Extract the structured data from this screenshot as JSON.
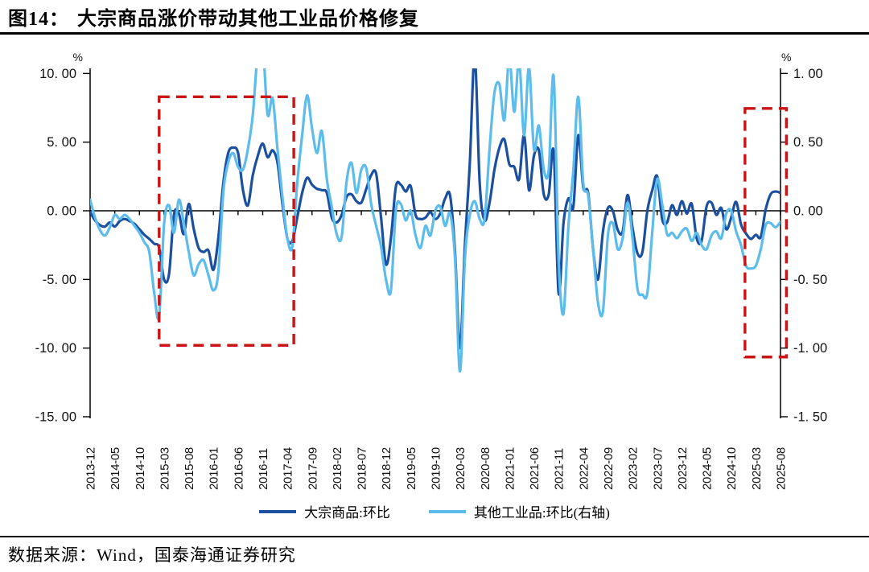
{
  "header": {
    "figure_no": "图14：",
    "title": "大宗商品涨价带动其他工业品价格修复"
  },
  "footer": {
    "source": "数据来源：Wind，国泰海通证券研究"
  },
  "chart_data": {
    "type": "line",
    "frequency": "monthly",
    "x_start": "2013-12",
    "x_end": "2025-08",
    "x_tick_labels": [
      "2013-12",
      "2014-05",
      "2014-10",
      "2015-03",
      "2015-08",
      "2016-01",
      "2016-06",
      "2016-11",
      "2017-04",
      "2017-09",
      "2018-02",
      "2018-07",
      "2018-12",
      "2019-05",
      "2019-10",
      "2020-03",
      "2020-08",
      "2021-01",
      "2021-06",
      "2021-11",
      "2022-04",
      "2022-09",
      "2023-02",
      "2023-07",
      "2023-12",
      "2024-05",
      "2024-10",
      "2025-03",
      "2025-08"
    ],
    "left_axis": {
      "unit": "%",
      "min": -15,
      "max": 10,
      "tick_values": [
        10,
        5,
        0,
        -5,
        -10,
        -15
      ],
      "tick_labels": [
        "10. 00",
        "5. 00",
        "0. 00",
        "-5. 00",
        "-10. 00",
        "-15. 00"
      ]
    },
    "right_axis": {
      "unit": "%",
      "min": -1.5,
      "max": 1,
      "tick_values": [
        1,
        0.5,
        0,
        -0.5,
        -1,
        -1.5
      ],
      "tick_labels": [
        "1. 00",
        "0. 50",
        "0. 00",
        "-0. 50",
        "-1. 00",
        "-1. 50"
      ]
    },
    "grid": false,
    "legend_position": "bottom-center",
    "highlight_color": "#c81414",
    "highlight_boxes": [
      {
        "from_month": "2015-02",
        "to_month": "2017-05",
        "from_index": 14.0,
        "to_index": 41.3,
        "top_value_left_axis": 8.3,
        "bottom_value_left_axis": -9.8
      },
      {
        "from_month": "2025-01",
        "to_month": "2025-08",
        "from_index": 132.8,
        "to_index": 141.2,
        "top_value_left_axis": 7.45,
        "bottom_value_left_axis": -10.65
      }
    ],
    "series": [
      {
        "name": "大宗商品:环比",
        "axis": "left",
        "color": "#1b4f9f",
        "values": [
          -0.1,
          -0.7,
          -1.05,
          -1.15,
          -0.85,
          -1.15,
          -0.75,
          -0.6,
          -0.75,
          -0.95,
          -1.35,
          -1.75,
          -2.05,
          -2.4,
          -2.7,
          -5.0,
          -4.6,
          -0.3,
          -0.2,
          -1.7,
          0.5,
          -1.3,
          -2.7,
          -3.0,
          -2.9,
          -4.3,
          -2.0,
          2.0,
          4.2,
          4.6,
          4.2,
          1.5,
          0.4,
          2.6,
          4.0,
          4.9,
          3.9,
          4.4,
          3.5,
          0.5,
          -2.0,
          -2.2,
          -0.5,
          1.3,
          2.4,
          1.9,
          1.6,
          1.5,
          1.3,
          -0.5,
          -0.85,
          -0.3,
          1.0,
          1.2,
          0.7,
          0.6,
          1.6,
          2.6,
          2.7,
          -0.5,
          -3.9,
          -2.0,
          1.75,
          1.9,
          1.4,
          1.8,
          -0.3,
          -0.6,
          -0.5,
          -0.1,
          -0.6,
          -0.2,
          0.9,
          1.1,
          -3.0,
          -10.0,
          -2.5,
          3.5,
          11.3,
          2.0,
          -0.7,
          0.6,
          3.0,
          4.6,
          5.2,
          3.4,
          3.2,
          2.3,
          5.5,
          1.5,
          4.0,
          4.4,
          1.2,
          1.2,
          4.3,
          -6.0,
          -0.9,
          0.9,
          0.3,
          5.5,
          1.7,
          1.3,
          -2.8,
          -5.0,
          -1.5,
          0.2,
          0.0,
          -1.4,
          -1.5,
          1.15,
          -1.25,
          -3.1,
          -3.0,
          0.0,
          1.5,
          2.5,
          -0.6,
          -0.85,
          0.4,
          -0.3,
          0.7,
          -0.2,
          0.5,
          -2.0,
          -2.2,
          0.3,
          0.6,
          -0.3,
          0.2,
          -1.35,
          -0.5,
          0.65,
          -1.0,
          -1.65,
          -2.05,
          -1.75,
          -1.9,
          0.1,
          1.2,
          1.4,
          1.3
        ]
      },
      {
        "name": "其他工业品:环比(右轴)",
        "axis": "right",
        "color": "#5cbcec",
        "values": [
          0.08,
          -0.05,
          -0.14,
          -0.18,
          -0.12,
          -0.03,
          -0.06,
          -0.03,
          -0.06,
          -0.11,
          -0.16,
          -0.23,
          -0.3,
          -0.6,
          -0.77,
          -0.1,
          0.04,
          -0.16,
          0.08,
          -0.09,
          -0.3,
          -0.47,
          -0.39,
          -0.36,
          -0.47,
          -0.58,
          -0.45,
          0.13,
          0.35,
          0.42,
          0.32,
          0.3,
          0.45,
          0.7,
          1.15,
          1.2,
          0.7,
          0.82,
          0.45,
          0.1,
          -0.2,
          -0.26,
          0.2,
          0.55,
          0.84,
          0.6,
          0.42,
          0.58,
          0.23,
          0.03,
          -0.17,
          -0.19,
          0.21,
          0.35,
          0.13,
          0.3,
          0.31,
          0.05,
          -0.11,
          -0.26,
          -0.5,
          -0.58,
          0.0,
          0.05,
          -0.07,
          0.0,
          -0.18,
          -0.27,
          -0.11,
          -0.18,
          0.0,
          0.03,
          -0.11,
          -0.02,
          -0.35,
          -1.17,
          -0.35,
          -0.03,
          0.07,
          -0.06,
          -0.06,
          0.45,
          0.86,
          0.92,
          0.66,
          1.12,
          0.72,
          1.1,
          0.55,
          1.05,
          0.45,
          0.62,
          0.3,
          0.3,
          0.98,
          -0.35,
          -0.75,
          -0.11,
          0.3,
          0.83,
          0.2,
          0.11,
          -0.28,
          -0.67,
          -0.73,
          -0.18,
          -0.09,
          -0.28,
          -0.2,
          0.06,
          -0.2,
          -0.57,
          -0.61,
          -0.6,
          -0.15,
          0.23,
          0.05,
          -0.17,
          -0.16,
          -0.2,
          -0.15,
          -0.13,
          -0.22,
          -0.16,
          -0.25,
          -0.28,
          -0.18,
          -0.15,
          -0.2,
          -0.02,
          0.0,
          -0.15,
          -0.25,
          -0.4,
          -0.42,
          -0.4,
          -0.28,
          -0.105,
          -0.09,
          -0.12,
          -0.08
        ]
      }
    ]
  }
}
